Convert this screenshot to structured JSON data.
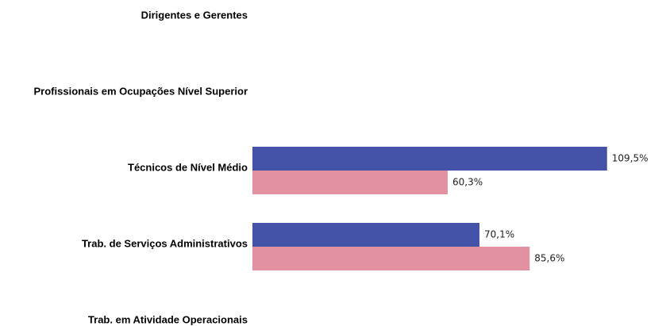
{
  "chart_data": {
    "type": "hbar",
    "categories": [
      "Dirigentes e Gerentes",
      "Profissionais em Ocupações Nível Superior",
      "Técnicos de Nível Médio",
      "Trab. de Serviços Administrativos",
      "Trab. em Atividade Operacionais"
    ],
    "series": [
      {
        "color": "#4453a8",
        "values": [
          null,
          null,
          109.5,
          70.1,
          null
        ],
        "value_labels": [
          null,
          null,
          "109,5%",
          "70,1%",
          null
        ]
      },
      {
        "color": "#e291a0",
        "values": [
          null,
          null,
          60.3,
          85.6,
          null
        ],
        "value_labels": [
          null,
          null,
          "60,3%",
          "85,6%",
          null
        ]
      }
    ]
  }
}
